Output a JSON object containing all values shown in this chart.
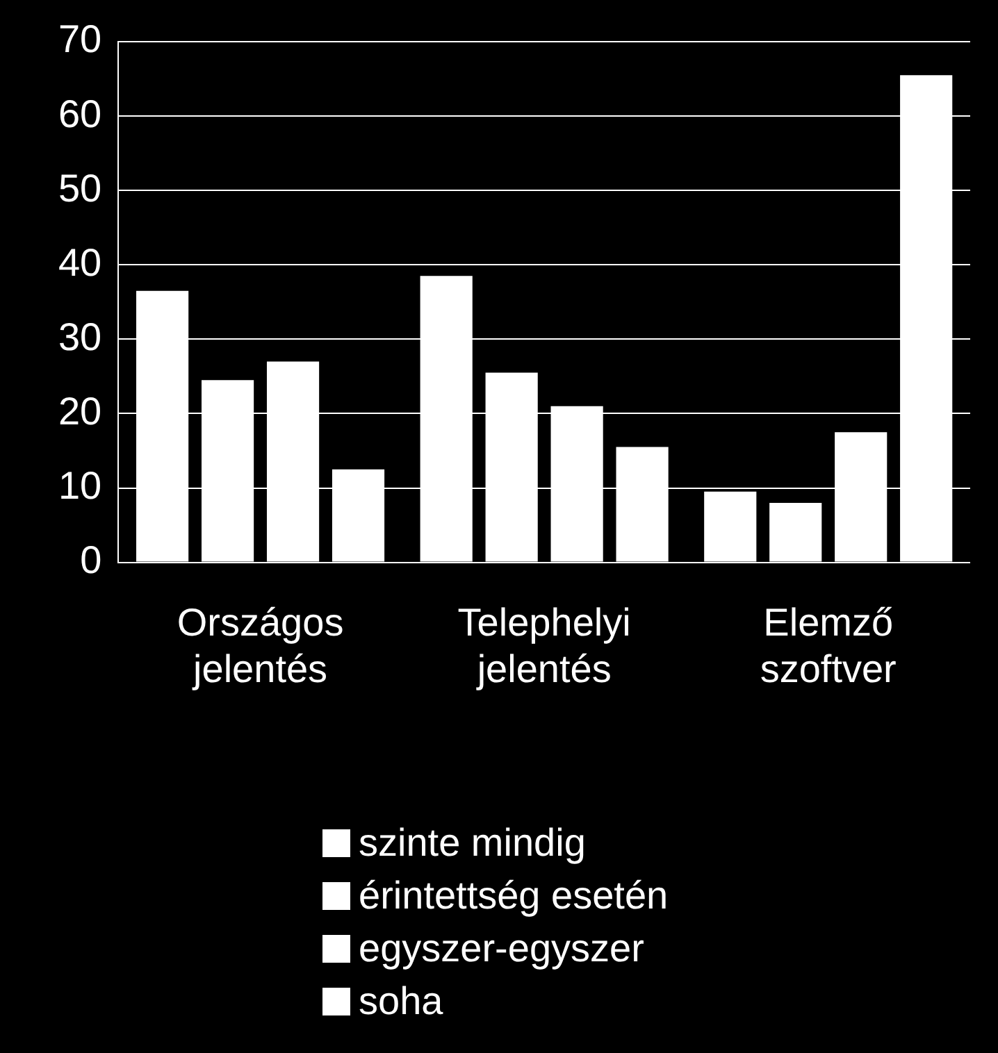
{
  "chart_data": {
    "type": "bar",
    "categories": [
      "Országos jelentés",
      "Telephelyi jelentés",
      "Elemző szoftver"
    ],
    "series": [
      {
        "name": "szinte mindig",
        "color": "#ffffff",
        "values": [
          36.5,
          38.5,
          9.5
        ]
      },
      {
        "name": "érintettség esetén",
        "color": "#ffffff",
        "values": [
          24.5,
          25.5,
          8
        ]
      },
      {
        "name": "egyszer-egyszer",
        "color": "#ffffff",
        "values": [
          27,
          21,
          17.5
        ]
      },
      {
        "name": "soha",
        "color": "#ffffff",
        "values": [
          12.5,
          15.5,
          65.5
        ]
      }
    ],
    "ylim": [
      0,
      70
    ],
    "yticks": [
      0,
      10,
      20,
      30,
      40,
      50,
      60,
      70
    ],
    "grid": "y",
    "legend": "bottom"
  }
}
